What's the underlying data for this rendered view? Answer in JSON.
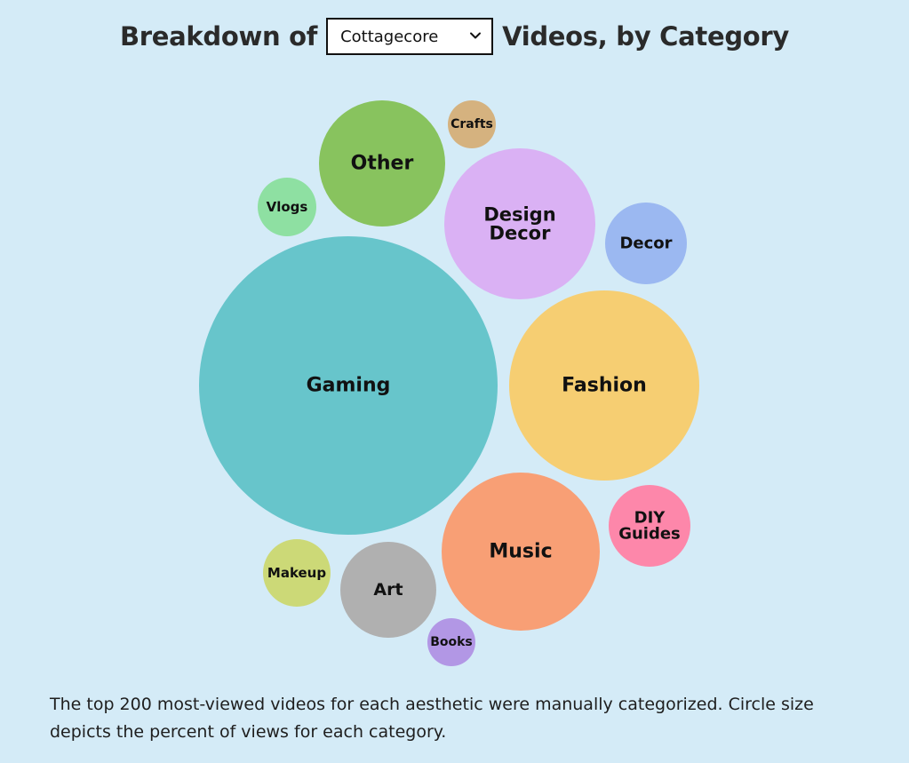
{
  "header": {
    "prefix": "Breakdown of",
    "suffix": "Videos, by Category",
    "aesthetic_select": {
      "selected": "Cottagecore"
    }
  },
  "chart_data": {
    "type": "bubble",
    "title": "Breakdown of Cottagecore Videos, by Category",
    "size_encodes": "percent of views",
    "categories": [
      {
        "name": "Gaming",
        "lines": [
          "Gaming"
        ],
        "color": "#67c5cb"
      },
      {
        "name": "Fashion",
        "lines": [
          "Fashion"
        ],
        "color": "#f6ce72"
      },
      {
        "name": "Music",
        "lines": [
          "Music"
        ],
        "color": "#f89f75"
      },
      {
        "name": "Design Decor",
        "lines": [
          "Design",
          "Decor"
        ],
        "color": "#dab1f4"
      },
      {
        "name": "Other",
        "lines": [
          "Other"
        ],
        "color": "#88c35e"
      },
      {
        "name": "Art",
        "lines": [
          "Art"
        ],
        "color": "#b0b0b0"
      },
      {
        "name": "DIY Guides",
        "lines": [
          "DIY",
          "Guides"
        ],
        "color": "#fd87aa"
      },
      {
        "name": "Decor",
        "lines": [
          "Decor"
        ],
        "color": "#9bb8f1"
      },
      {
        "name": "Makeup",
        "lines": [
          "Makeup"
        ],
        "color": "#ccd977"
      },
      {
        "name": "Vlogs",
        "lines": [
          "Vlogs"
        ],
        "color": "#8ee0a2"
      },
      {
        "name": "Crafts",
        "lines": [
          "Crafts"
        ],
        "color": "#d5b27f"
      },
      {
        "name": "Books",
        "lines": [
          "Books"
        ],
        "color": "#b297e5"
      }
    ]
  },
  "footnote": "The top 200 most-viewed videos for each aesthetic were manually categorized. Circle size depicts the percent of views for each category."
}
